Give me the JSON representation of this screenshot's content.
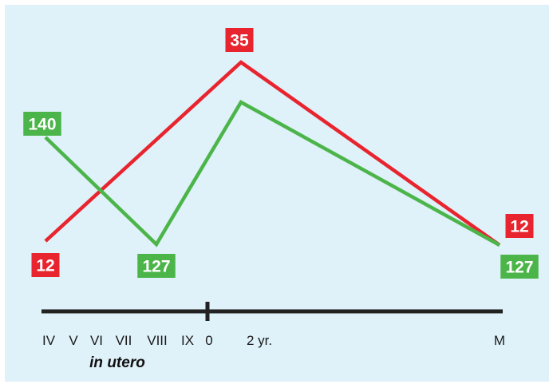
{
  "chart_data": {
    "type": "line",
    "colors": {
      "red": "#e8242e",
      "green": "#4cb54a",
      "axis": "#222222",
      "background": "#dff1f9"
    },
    "x": [
      "IV",
      "VIII",
      "2 yr.",
      "M"
    ],
    "series": [
      {
        "color": "red",
        "values": [
          12,
          null,
          35,
          12
        ]
      },
      {
        "color": "green",
        "values": [
          140,
          127,
          null,
          127
        ]
      }
    ],
    "labels": [
      {
        "text": "140",
        "series": "green"
      },
      {
        "text": "12",
        "series": "red"
      },
      {
        "text": "127",
        "series": "green"
      },
      {
        "text": "35",
        "series": "red"
      },
      {
        "text": "12",
        "series": "red"
      },
      {
        "text": "127",
        "series": "green"
      }
    ],
    "ticks": [
      "IV",
      "V",
      "VI",
      "VII",
      "VIII",
      "IX",
      "0",
      "2 yr.",
      "M"
    ],
    "sublabel": "in utero"
  }
}
